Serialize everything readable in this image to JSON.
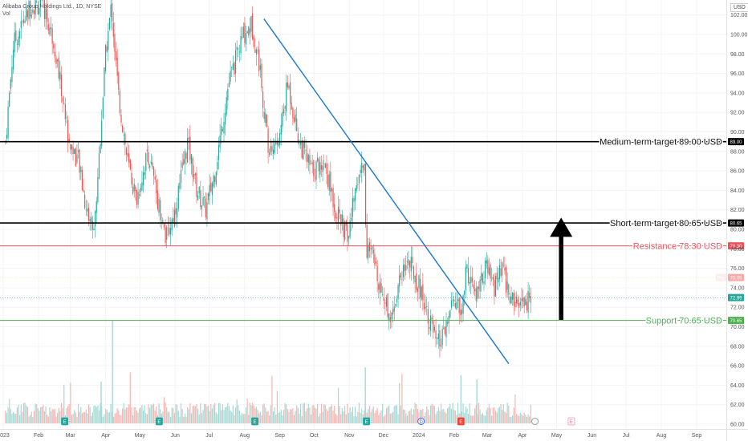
{
  "header": {
    "symbol_line": "Alibaba Group Holdings Ltd., 1D, NYSE",
    "volume_label": "Vol",
    "currency": "USD"
  },
  "chart_data": {
    "type": "candlestick",
    "y_axis": {
      "ticks": [
        "102.00",
        "100.00",
        "98.00",
        "96.00",
        "94.00",
        "92.00",
        "90.00",
        "88.00",
        "86.00",
        "84.00",
        "82.00",
        "80.00",
        "78.00",
        "76.00",
        "74.00",
        "72.00",
        "70.00",
        "68.00",
        "66.00",
        "64.00",
        "62.00",
        "60.00"
      ],
      "min": 60,
      "max": 102
    },
    "x_axis": {
      "ticks": [
        "2023",
        "Feb",
        "Mar",
        "Apr",
        "May",
        "Jun",
        "Jul",
        "Aug",
        "Sep",
        "Oct",
        "Nov",
        "Dec",
        "2024",
        "Feb",
        "Mar",
        "Apr",
        "May",
        "Jun",
        "Jul",
        "Aug",
        "Sep"
      ]
    },
    "price_path": [
      [
        "2023-01-03",
        89
      ],
      [
        "2023-01-10",
        99
      ],
      [
        "2023-01-25",
        103
      ],
      [
        "2023-02-05",
        103
      ],
      [
        "2023-02-15",
        99
      ],
      [
        "2023-02-28",
        89
      ],
      [
        "2023-03-08",
        87
      ],
      [
        "2023-03-15",
        82
      ],
      [
        "2023-03-22",
        80
      ],
      [
        "2023-04-01",
        98
      ],
      [
        "2023-04-06",
        103
      ],
      [
        "2023-04-12",
        94
      ],
      [
        "2023-04-20",
        87
      ],
      [
        "2023-04-28",
        83
      ],
      [
        "2023-05-08",
        88
      ],
      [
        "2023-05-15",
        84
      ],
      [
        "2023-05-24",
        79
      ],
      [
        "2023-06-01",
        82
      ],
      [
        "2023-06-12",
        89
      ],
      [
        "2023-06-20",
        84
      ],
      [
        "2023-06-28",
        82
      ],
      [
        "2023-07-06",
        86
      ],
      [
        "2023-07-18",
        95
      ],
      [
        "2023-07-31",
        100
      ],
      [
        "2023-08-07",
        101
      ],
      [
        "2023-08-14",
        97
      ],
      [
        "2023-08-22",
        88
      ],
      [
        "2023-08-31",
        89
      ],
      [
        "2023-09-08",
        95
      ],
      [
        "2023-09-18",
        89
      ],
      [
        "2023-09-29",
        86
      ],
      [
        "2023-10-10",
        87
      ],
      [
        "2023-10-20",
        82
      ],
      [
        "2023-10-31",
        79
      ],
      [
        "2023-11-07",
        85
      ],
      [
        "2023-11-14",
        87
      ],
      [
        "2023-11-16",
        78
      ],
      [
        "2023-11-22",
        77
      ],
      [
        "2023-12-01",
        73
      ],
      [
        "2023-12-08",
        71
      ],
      [
        "2023-12-15",
        75
      ],
      [
        "2023-12-22",
        77
      ],
      [
        "2024-01-02",
        74
      ],
      [
        "2024-01-10",
        71
      ],
      [
        "2024-01-17",
        68
      ],
      [
        "2024-01-23",
        69
      ],
      [
        "2024-02-01",
        73
      ],
      [
        "2024-02-07",
        71
      ],
      [
        "2024-02-12",
        76
      ],
      [
        "2024-02-20",
        73
      ],
      [
        "2024-02-29",
        76
      ],
      [
        "2024-03-07",
        74
      ],
      [
        "2024-03-14",
        76
      ],
      [
        "2024-03-21",
        73
      ],
      [
        "2024-03-28",
        72
      ],
      [
        "2024-04-04",
        72.5
      ],
      [
        "2024-04-09",
        72.99
      ]
    ],
    "levels": [
      {
        "label": "Medium-term target 89.00 USD",
        "value": 89.0,
        "color": "#000000",
        "tag": "89.00"
      },
      {
        "label": "Short-term target 80.65 USD",
        "value": 80.65,
        "color": "#000000",
        "tag": "80.65"
      },
      {
        "label": "Resistance 78.30 USD",
        "value": 78.3,
        "color": "#f0505a",
        "tag": "78.30"
      },
      {
        "label": "Support 70.65 USD",
        "value": 70.65,
        "color": "#4caf50",
        "tag": "70.65"
      }
    ],
    "last_price": {
      "value": 72.99,
      "tag": "72.99",
      "color": "#26a69a"
    },
    "prev_close": {
      "value": 75.05,
      "tag": "75.05",
      "label": "Pre",
      "color": "#f7a8a8"
    },
    "trendline": {
      "from": [
        "2023-08-18",
        101.6
      ],
      "to": [
        "2024-03-20",
        66.2
      ],
      "color": "#1976d2"
    },
    "arrow": {
      "at": "2024-05-05",
      "from": 70.7,
      "to": 81.2,
      "color": "#000000"
    },
    "event_markers": {
      "earnings_dates": [
        "2023-02-24",
        "2023-05-18",
        "2023-08-10",
        "2023-11-16",
        "2024-02-07"
      ],
      "dividend_date": "2024-01-03",
      "upcoming_earnings": "2024-05-14"
    }
  }
}
